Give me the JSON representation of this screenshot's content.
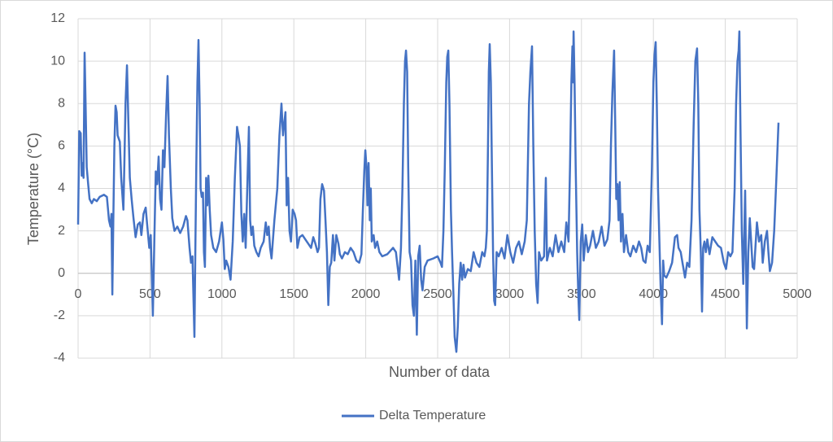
{
  "chart_data": {
    "type": "line",
    "x_label": "Number of data",
    "y_label": "Temperature (°C)",
    "xlim": [
      0,
      5000
    ],
    "xticks": [
      0,
      500,
      1000,
      1500,
      2000,
      2500,
      3000,
      3500,
      4000,
      4500,
      5000
    ],
    "ylim": [
      -4,
      12
    ],
    "yticks": [
      -4,
      -2,
      0,
      2,
      4,
      6,
      8,
      10,
      12
    ],
    "grid": true,
    "legend": "bottom",
    "x": [
      0,
      8,
      18,
      25,
      32,
      38,
      45,
      52,
      60,
      70,
      80,
      95,
      110,
      130,
      150,
      180,
      200,
      215,
      225,
      232,
      238,
      245,
      252,
      260,
      268,
      275,
      290,
      300,
      315,
      322,
      330,
      340,
      350,
      360,
      372,
      385,
      400,
      415,
      430,
      440,
      455,
      470,
      480,
      495,
      505,
      520,
      530,
      540,
      550,
      560,
      570,
      580,
      590,
      600,
      612,
      622,
      632,
      645,
      655,
      670,
      690,
      710,
      730,
      750,
      760,
      775,
      785,
      795,
      809,
      815,
      822,
      830,
      837,
      845,
      852,
      860,
      868,
      875,
      882,
      890,
      898,
      906,
      915,
      925,
      940,
      960,
      980,
      1000,
      1010,
      1020,
      1030,
      1045,
      1060,
      1075,
      1090,
      1105,
      1115,
      1125,
      1135,
      1145,
      1155,
      1165,
      1178,
      1188,
      1196,
      1205,
      1215,
      1225,
      1240,
      1255,
      1270,
      1290,
      1305,
      1315,
      1325,
      1335,
      1345,
      1365,
      1385,
      1400,
      1414,
      1425,
      1442,
      1450,
      1460,
      1470,
      1480,
      1492,
      1505,
      1515,
      1525,
      1540,
      1560,
      1580,
      1600,
      1620,
      1635,
      1650,
      1665,
      1675,
      1685,
      1697,
      1710,
      1720,
      1730,
      1740,
      1750,
      1760,
      1772,
      1782,
      1795,
      1810,
      1820,
      1835,
      1855,
      1875,
      1895,
      1915,
      1935,
      1955,
      1970,
      1980,
      1990,
      1997,
      2005,
      2012,
      2020,
      2028,
      2035,
      2042,
      2055,
      2065,
      2080,
      2095,
      2115,
      2150,
      2190,
      2210,
      2222,
      2232,
      2245,
      2255,
      2265,
      2273,
      2280,
      2288,
      2295,
      2305,
      2315,
      2325,
      2335,
      2345,
      2355,
      2365,
      2375,
      2385,
      2395,
      2410,
      2430,
      2470,
      2500,
      2520,
      2530,
      2540,
      2550,
      2560,
      2567,
      2574,
      2582,
      2592,
      2600,
      2610,
      2618,
      2630,
      2640,
      2650,
      2660,
      2670,
      2680,
      2690,
      2710,
      2730,
      2750,
      2770,
      2790,
      2810,
      2825,
      2835,
      2842,
      2850,
      2856,
      2862,
      2870,
      2877,
      2885,
      2893,
      2900,
      2910,
      2925,
      2945,
      2965,
      2985,
      3005,
      3025,
      3045,
      3065,
      3085,
      3105,
      3120,
      3135,
      3145,
      3156,
      3165,
      3175,
      3185,
      3195,
      3205,
      3220,
      3240,
      3252,
      3260,
      3280,
      3300,
      3320,
      3340,
      3360,
      3380,
      3395,
      3410,
      3420,
      3430,
      3437,
      3441,
      3445,
      3452,
      3460,
      3470,
      3478,
      3485,
      3495,
      3505,
      3515,
      3530,
      3545,
      3560,
      3580,
      3600,
      3620,
      3640,
      3660,
      3680,
      3695,
      3705,
      3715,
      3727,
      3735,
      3742,
      3750,
      3758,
      3766,
      3775,
      3785,
      3795,
      3810,
      3825,
      3840,
      3860,
      3880,
      3900,
      3915,
      3930,
      3945,
      3960,
      3975,
      3990,
      4000,
      4008,
      4016,
      4024,
      4032,
      4042,
      4050,
      4060,
      4068,
      4075,
      4090,
      4110,
      4130,
      4150,
      4165,
      4175,
      4190,
      4205,
      4220,
      4235,
      4250,
      4265,
      4280,
      4292,
      4304,
      4312,
      4320,
      4330,
      4338,
      4346,
      4355,
      4365,
      4375,
      4390,
      4410,
      4430,
      4450,
      4470,
      4490,
      4505,
      4520,
      4535,
      4550,
      4565,
      4575,
      4585,
      4593,
      4598,
      4605,
      4615,
      4625,
      4638,
      4650,
      4660,
      4670,
      4680,
      4690,
      4700,
      4720,
      4735,
      4750,
      4760,
      4775,
      4790,
      4800,
      4810,
      4825,
      4840,
      4855,
      4870
    ],
    "series": [
      {
        "name": "Delta Temperature",
        "color": "#4472c4",
        "values": [
          2.3,
          6.7,
          6.6,
          4.6,
          5.2,
          4.5,
          10.4,
          8,
          5,
          4.2,
          3.5,
          3.3,
          3.5,
          3.4,
          3.6,
          3.7,
          3.6,
          2.5,
          2.2,
          2.8,
          -1.0,
          2.5,
          6,
          7.9,
          7.6,
          6.5,
          6.2,
          4.5,
          3.0,
          5.2,
          8,
          9.8,
          7,
          4.5,
          3.5,
          2.6,
          1.7,
          2.3,
          2.4,
          1.8,
          2.8,
          3.1,
          2.3,
          1.2,
          1.8,
          -2.0,
          1.5,
          4.8,
          4.2,
          5.5,
          3.5,
          3.0,
          5.8,
          5.0,
          7.5,
          9.3,
          6.5,
          4,
          2.6,
          2.0,
          2.2,
          1.9,
          2.2,
          2.7,
          2.5,
          1.2,
          0.5,
          0.8,
          -3.0,
          1.0,
          5,
          9,
          11,
          8,
          4,
          3.6,
          3.8,
          1.0,
          0.3,
          4.5,
          3.2,
          4.6,
          3.0,
          1.8,
          1.2,
          1.0,
          1.5,
          2.4,
          1.6,
          0.2,
          0.6,
          0.3,
          -0.3,
          1.5,
          4.5,
          6.9,
          6.5,
          6.0,
          2.8,
          1.5,
          2.8,
          1.2,
          4.5,
          6.9,
          2.5,
          1.8,
          2.2,
          1.3,
          1.0,
          0.8,
          1.2,
          1.5,
          2.4,
          1.8,
          2.2,
          1.2,
          0.7,
          2.5,
          4.0,
          6.5,
          8.0,
          6.5,
          7.6,
          3.2,
          4.5,
          2.0,
          1.5,
          3.0,
          2.8,
          2.5,
          1.2,
          1.7,
          1.8,
          1.6,
          1.4,
          1.2,
          1.7,
          1.4,
          1.0,
          1.2,
          3.5,
          4.2,
          3.9,
          2.5,
          1.0,
          -1.5,
          0.3,
          0.5,
          1.8,
          0.6,
          1.8,
          1.4,
          0.9,
          0.7,
          1.0,
          0.9,
          1.2,
          1.0,
          0.6,
          0.5,
          0.9,
          3.0,
          4.8,
          5.8,
          5.0,
          3.2,
          5.2,
          2.5,
          4.0,
          1.5,
          1.8,
          1.2,
          1.5,
          1.0,
          0.8,
          0.9,
          1.2,
          1.0,
          0.3,
          -0.3,
          1.2,
          4,
          8,
          10,
          10.5,
          9.5,
          5,
          1.0,
          0.6,
          -1.5,
          -2.0,
          0.6,
          -2.9,
          0.8,
          1.3,
          -0.3,
          -0.8,
          0.3,
          0.6,
          0.7,
          0.8,
          0.5,
          0.3,
          2.0,
          5,
          9,
          10.2,
          10.5,
          8,
          3,
          1.0,
          -1.0,
          -3.0,
          -3.7,
          -2.5,
          -0.5,
          0.5,
          -0.3,
          0.4,
          -0.2,
          0.2,
          0.1,
          1.0,
          0.5,
          0.3,
          1.0,
          0.8,
          1.2,
          2,
          6,
          9.5,
          10.8,
          9,
          5,
          1.0,
          -1.3,
          -1.5,
          1.0,
          0.8,
          1.2,
          0.7,
          1.8,
          1.0,
          0.5,
          1.2,
          1.5,
          0.9,
          1.5,
          2.5,
          8,
          9.5,
          10.7,
          6,
          2,
          -0.5,
          -1.4,
          1.0,
          0.6,
          0.8,
          4.5,
          0.6,
          1.2,
          0.8,
          1.8,
          1.0,
          1.5,
          1.0,
          2.4,
          1.5,
          5,
          9,
          10.7,
          9,
          11.4,
          9,
          5,
          1.0,
          -1.0,
          -2.2,
          1.5,
          2.3,
          0.6,
          1.8,
          1.0,
          1.3,
          2.0,
          1.2,
          1.5,
          2.2,
          1.3,
          1.6,
          2.5,
          6,
          8.5,
          10.5,
          7,
          3.5,
          4.2,
          2.5,
          4.3,
          1.5,
          2.8,
          1.0,
          1.8,
          1.0,
          0.8,
          1.3,
          1.0,
          1.5,
          1.2,
          0.6,
          0.5,
          1.3,
          1.0,
          5,
          9,
          10.3,
          10.9,
          8,
          4,
          1.5,
          -0.5,
          -2.4,
          0.6,
          -0.1,
          -0.2,
          0.1,
          0.5,
          1.7,
          1.8,
          1.2,
          1.0,
          0.4,
          -0.2,
          0.5,
          0.3,
          2.5,
          7,
          10,
          10.6,
          8,
          3,
          1.0,
          -1.8,
          1.2,
          1.5,
          1.0,
          1.6,
          0.9,
          1.7,
          1.5,
          1.3,
          1.2,
          0.5,
          0.2,
          1.0,
          0.8,
          1.0,
          4,
          8,
          10,
          10.5,
          11.4,
          7,
          2,
          -0.5,
          3.9,
          -2.6,
          1.0,
          2.6,
          1.5,
          0.3,
          0.2,
          2.4,
          1.5,
          1.8,
          0.5,
          1.5,
          2.0,
          1.0,
          0.1,
          0.5,
          2.0,
          4.5,
          7.1
        ]
      }
    ]
  }
}
